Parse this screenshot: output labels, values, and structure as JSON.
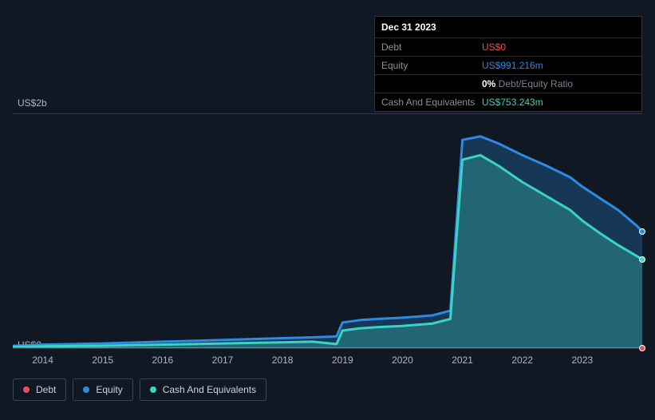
{
  "tooltip": {
    "date": "Dec 31 2023",
    "rows": [
      {
        "label": "Debt",
        "value": "US$0",
        "color": "#e8505b"
      },
      {
        "label": "Equity",
        "value": "US$991.216m",
        "color": "#2f8ae0"
      },
      {
        "label": "",
        "value_prefix": "0%",
        "value_suffix": " Debt/Equity Ratio",
        "prefix_color": "#ffffff",
        "suffix_color": "#7a828c"
      },
      {
        "label": "Cash And Equivalents",
        "value": "US$753.243m",
        "color": "#3bd4c1"
      }
    ]
  },
  "chart": {
    "type": "area-line",
    "background_color": "#0f1823",
    "grid_color": "#2f3a46",
    "y_top_label": "US$2b",
    "y_bot_label": "US$0",
    "y_min": 0,
    "y_max": 2000,
    "x_years": [
      2014,
      2015,
      2016,
      2017,
      2018,
      2019,
      2020,
      2021,
      2022,
      2023
    ],
    "series": {
      "equity": {
        "label": "Equity",
        "color": "#2f8ae0",
        "fill": "rgba(47,138,224,0.28)",
        "line_width": 3,
        "points": [
          [
            2013.5,
            20
          ],
          [
            2014,
            30
          ],
          [
            2014.5,
            35
          ],
          [
            2015,
            40
          ],
          [
            2015.5,
            48
          ],
          [
            2016,
            55
          ],
          [
            2016.5,
            62
          ],
          [
            2017,
            70
          ],
          [
            2017.5,
            78
          ],
          [
            2018,
            85
          ],
          [
            2018.5,
            92
          ],
          [
            2018.9,
            100
          ],
          [
            2019.0,
            220
          ],
          [
            2019.3,
            240
          ],
          [
            2019.6,
            250
          ],
          [
            2020,
            260
          ],
          [
            2020.5,
            280
          ],
          [
            2020.8,
            320
          ],
          [
            2021.0,
            1780
          ],
          [
            2021.3,
            1810
          ],
          [
            2021.6,
            1750
          ],
          [
            2022.0,
            1650
          ],
          [
            2022.4,
            1560
          ],
          [
            2022.8,
            1460
          ],
          [
            2023.0,
            1380
          ],
          [
            2023.3,
            1280
          ],
          [
            2023.6,
            1180
          ],
          [
            2023.9,
            1050
          ],
          [
            2024.0,
            1000
          ]
        ]
      },
      "cash": {
        "label": "Cash And Equivalents",
        "color": "#3bd4c1",
        "fill": "rgba(59,212,193,0.30)",
        "line_width": 3,
        "points": [
          [
            2013.5,
            10
          ],
          [
            2014,
            15
          ],
          [
            2014.5,
            18
          ],
          [
            2015,
            20
          ],
          [
            2015.5,
            25
          ],
          [
            2016,
            30
          ],
          [
            2016.5,
            35
          ],
          [
            2017,
            40
          ],
          [
            2017.5,
            45
          ],
          [
            2018,
            50
          ],
          [
            2018.5,
            55
          ],
          [
            2018.9,
            35
          ],
          [
            2019.0,
            150
          ],
          [
            2019.3,
            170
          ],
          [
            2019.6,
            180
          ],
          [
            2020,
            190
          ],
          [
            2020.5,
            210
          ],
          [
            2020.8,
            250
          ],
          [
            2021.0,
            1610
          ],
          [
            2021.3,
            1650
          ],
          [
            2021.6,
            1560
          ],
          [
            2022.0,
            1420
          ],
          [
            2022.4,
            1300
          ],
          [
            2022.8,
            1180
          ],
          [
            2023.0,
            1090
          ],
          [
            2023.3,
            980
          ],
          [
            2023.6,
            880
          ],
          [
            2023.9,
            790
          ],
          [
            2024.0,
            760
          ]
        ]
      },
      "debt": {
        "label": "Debt",
        "color": "#e8505b",
        "fill": "none",
        "line_width": 2,
        "points": [
          [
            2013.5,
            0
          ],
          [
            2024.0,
            0
          ]
        ]
      }
    },
    "end_markers": [
      {
        "series": "equity",
        "x": 2024.0,
        "y": 1000,
        "color": "#2f8ae0"
      },
      {
        "series": "cash",
        "x": 2024.0,
        "y": 760,
        "color": "#3bd4c1"
      },
      {
        "series": "debt",
        "x": 2024.0,
        "y": 0,
        "color": "#e8505b"
      }
    ]
  },
  "legend": [
    {
      "label": "Debt",
      "color": "#e8505b"
    },
    {
      "label": "Equity",
      "color": "#2f8ae0"
    },
    {
      "label": "Cash And Equivalents",
      "color": "#3bd4c1"
    }
  ]
}
